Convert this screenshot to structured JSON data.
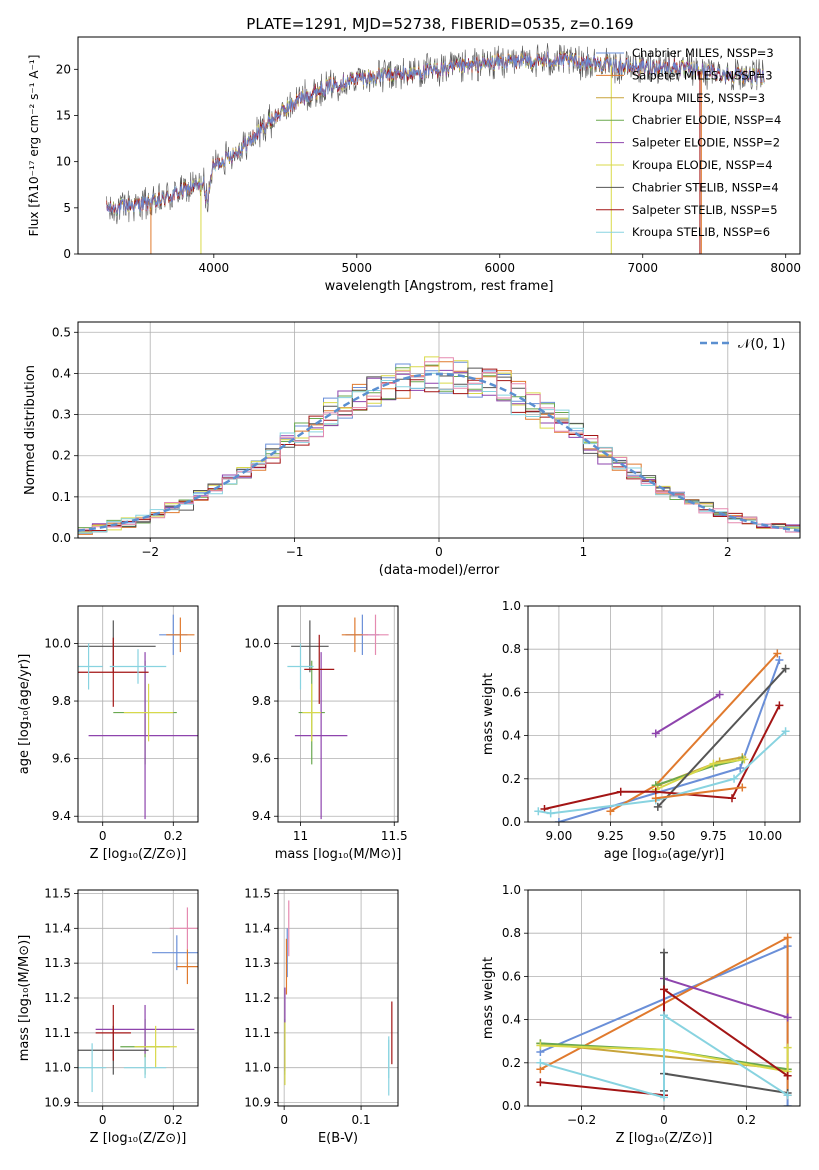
{
  "figure_title": "PLATE=1291, MJD=52738, FIBERID=0535, z=0.169",
  "colors": [
    "#6a8fd8",
    "#e07a2e",
    "#c8a43a",
    "#6aa84f",
    "#8e44ad",
    "#d9d94a",
    "#555555",
    "#a31515",
    "#88d3e0"
  ],
  "chart_data": [
    {
      "id": "spectrum",
      "type": "line",
      "xlabel": "wavelength [Angstrom, rest frame]",
      "ylabel": "Flux [fλ10⁻¹⁷ erg cm⁻² s⁻¹ A⁻¹]",
      "xlim": [
        3050,
        8100
      ],
      "ylim": [
        0,
        23.5
      ],
      "xticks": [
        4000,
        5000,
        6000,
        7000,
        8000
      ],
      "yticks": [
        0,
        5,
        10,
        15,
        20
      ],
      "grid": false,
      "legend_position": "upper-right",
      "legend": [
        "Chabrier MILES, NSSP=3",
        "Salpeter MILES, NSSP=3",
        "Kroupa MILES, NSSP=3",
        "Chabrier ELODIE, NSSP=4",
        "Salpeter ELODIE, NSSP=2",
        "Kroupa ELODIE, NSSP=4",
        "Chabrier STELIB, NSSP=4",
        "Salpeter STELIB, NSSP=5",
        "Kroupa STELIB, NSSP=6"
      ],
      "continuum": [
        [
          3250,
          4.9
        ],
        [
          3400,
          5.2
        ],
        [
          3600,
          5.6
        ],
        [
          3800,
          7.0
        ],
        [
          3950,
          7.6
        ],
        [
          4000,
          9.5
        ],
        [
          4200,
          11.5
        ],
        [
          4400,
          14.5
        ],
        [
          4600,
          16.8
        ],
        [
          4800,
          18.2
        ],
        [
          5000,
          19.0
        ],
        [
          5200,
          19.3
        ],
        [
          5400,
          19.6
        ],
        [
          5600,
          20.0
        ],
        [
          5800,
          20.4
        ],
        [
          6000,
          20.8
        ],
        [
          6200,
          20.9
        ],
        [
          6400,
          21.0
        ],
        [
          6600,
          20.8
        ],
        [
          6800,
          20.4
        ],
        [
          7000,
          20.2
        ],
        [
          7200,
          20.3
        ],
        [
          7400,
          19.8
        ],
        [
          7600,
          19.5
        ],
        [
          7800,
          19.2
        ],
        [
          7850,
          19.0
        ]
      ]
    },
    {
      "id": "residuals",
      "type": "histogram",
      "xlabel": "(data-model)/error",
      "ylabel": "Normed distribution",
      "xlim": [
        -2.5,
        2.5
      ],
      "ylim": [
        0,
        0.525
      ],
      "xticks": [
        -2,
        -1,
        0,
        1,
        2
      ],
      "yticks": [
        0.0,
        0.1,
        0.2,
        0.3,
        0.4,
        0.5
      ],
      "grid": true,
      "legend_position": "upper-right",
      "legend": [
        "𝒩(0, 1)"
      ],
      "bin_width": 0.1,
      "normal": {
        "mean": 0,
        "sigma": 1
      }
    },
    {
      "id": "age-vs-Z",
      "type": "errorbar",
      "xlabel": "Z [log₁₀(Z/Z⊙)]",
      "ylabel": "age  [log₁₀(age/yr)]",
      "xlim": [
        -0.07,
        0.27
      ],
      "ylim": [
        9.38,
        10.13
      ],
      "xticks": [
        0.0,
        0.2
      ],
      "yticks": [
        9.4,
        9.6,
        9.8,
        10.0
      ],
      "grid": true,
      "points": [
        {
          "x": 0.2,
          "y": 10.03,
          "xerr": 0.04,
          "yerr": 0.07,
          "c": 0
        },
        {
          "x": 0.22,
          "y": 10.03,
          "xerr": 0.04,
          "yerr": 0.06,
          "c": 1
        },
        {
          "x": 0.12,
          "y": 9.76,
          "xerr": 0.09,
          "yerr": 0.18,
          "c": 3
        },
        {
          "x": 0.12,
          "y": 9.68,
          "xerr": 0.16,
          "yerr": 0.29,
          "c": 4
        },
        {
          "x": 0.13,
          "y": 9.76,
          "xerr": 0.07,
          "yerr": 0.1,
          "c": 5
        },
        {
          "x": 0.03,
          "y": 9.99,
          "xerr": 0.12,
          "yerr": 0.09,
          "c": 6
        },
        {
          "x": 0.03,
          "y": 9.9,
          "xerr": 0.1,
          "yerr": 0.12,
          "c": 7
        },
        {
          "x": -0.04,
          "y": 9.92,
          "xerr": 0.04,
          "yerr": 0.08,
          "c": 8
        },
        {
          "x": 0.1,
          "y": 9.92,
          "xerr": 0.08,
          "yerr": 0.06,
          "c": 8
        }
      ]
    },
    {
      "id": "age-vs-mass",
      "type": "errorbar",
      "xlabel": "mass [log₁₀(M/M⊙)]",
      "ylabel": "",
      "xlim": [
        10.88,
        11.52
      ],
      "ylim": [
        9.38,
        10.13
      ],
      "xticks": [
        11.0,
        11.5
      ],
      "yticks": [
        9.4,
        9.6,
        9.8,
        10.0
      ],
      "grid": true,
      "points": [
        {
          "x": 11.33,
          "y": 10.03,
          "xerr": 0.09,
          "yerr": 0.07,
          "c": 0
        },
        {
          "x": 11.29,
          "y": 10.03,
          "xerr": 0.07,
          "yerr": 0.06,
          "c": 1
        },
        {
          "x": 11.4,
          "y": 10.03,
          "xerr": 0.07,
          "yerr": 0.07,
          "c": 9
        },
        {
          "x": 11.06,
          "y": 9.76,
          "xerr": 0.07,
          "yerr": 0.18,
          "c": 3
        },
        {
          "x": 11.11,
          "y": 9.68,
          "xerr": 0.14,
          "yerr": 0.29,
          "c": 4
        },
        {
          "x": 11.06,
          "y": 9.76,
          "xerr": 0.05,
          "yerr": 0.1,
          "c": 5
        },
        {
          "x": 11.05,
          "y": 9.99,
          "xerr": 0.1,
          "yerr": 0.09,
          "c": 6
        },
        {
          "x": 11.1,
          "y": 9.91,
          "xerr": 0.08,
          "yerr": 0.12,
          "c": 7
        },
        {
          "x": 11.0,
          "y": 9.92,
          "xerr": 0.07,
          "yerr": 0.08,
          "c": 8
        }
      ]
    },
    {
      "id": "mass-weight-vs-age",
      "type": "line",
      "xlabel": "age  [log₁₀(age/yr)]",
      "ylabel": "mass weight",
      "xlim": [
        8.85,
        10.17
      ],
      "ylim": [
        0,
        1.0
      ],
      "xticks": [
        9.0,
        9.25,
        9.5,
        9.75,
        10.0
      ],
      "xticklabels": [
        "9.00",
        "9.25",
        "9.50",
        "9.75",
        "10.00"
      ],
      "yticks": [
        0.0,
        0.2,
        0.4,
        0.6,
        0.8,
        1.0
      ],
      "grid": true,
      "series": [
        {
          "c": 0,
          "pts": [
            [
              9.0,
              0.0
            ],
            [
              9.88,
              0.25
            ],
            [
              10.07,
              0.75
            ]
          ]
        },
        {
          "c": 1,
          "pts": [
            [
              9.25,
              0.05
            ],
            [
              9.47,
              0.17
            ],
            [
              10.06,
              0.78
            ]
          ]
        },
        {
          "c": 2,
          "pts": [
            [
              9.48,
              0.17
            ],
            [
              9.78,
              0.28
            ],
            [
              9.89,
              0.3
            ]
          ]
        },
        {
          "c": 3,
          "pts": [
            [
              9.47,
              0.17
            ],
            [
              9.75,
              0.26
            ],
            [
              9.89,
              0.29
            ]
          ]
        },
        {
          "c": 4,
          "pts": [
            [
              9.47,
              0.41
            ],
            [
              9.78,
              0.59
            ]
          ]
        },
        {
          "c": 5,
          "pts": [
            [
              9.47,
              0.15
            ],
            [
              9.75,
              0.27
            ],
            [
              9.9,
              0.29
            ]
          ]
        },
        {
          "c": 6,
          "pts": [
            [
              9.48,
              0.07
            ],
            [
              10.1,
              0.71
            ]
          ]
        },
        {
          "c": 7,
          "pts": [
            [
              8.93,
              0.06
            ],
            [
              9.3,
              0.14
            ],
            [
              9.47,
              0.14
            ],
            [
              9.84,
              0.11
            ],
            [
              10.07,
              0.54
            ]
          ]
        },
        {
          "c": 8,
          "pts": [
            [
              8.9,
              0.05
            ],
            [
              8.96,
              0.04
            ],
            [
              9.47,
              0.1
            ],
            [
              9.85,
              0.2
            ],
            [
              10.1,
              0.42
            ]
          ]
        },
        {
          "c": 1,
          "pts": [
            [
              9.47,
              0.11
            ],
            [
              9.89,
              0.16
            ]
          ]
        }
      ]
    },
    {
      "id": "mass-vs-Z",
      "type": "errorbar",
      "xlabel": "Z [log₁₀(Z/Z⊙)]",
      "ylabel": "mass [log₁₀(M/M⊙)]",
      "xlim": [
        -0.07,
        0.27
      ],
      "ylim": [
        10.89,
        11.51
      ],
      "xticks": [
        0.0,
        0.2
      ],
      "yticks": [
        10.9,
        11.0,
        11.1,
        11.2,
        11.3,
        11.4,
        11.5
      ],
      "grid": true,
      "points": [
        {
          "x": 0.21,
          "y": 11.33,
          "xerr": 0.07,
          "yerr": 0.05,
          "c": 0
        },
        {
          "x": 0.24,
          "y": 11.29,
          "xerr": 0.03,
          "yerr": 0.05,
          "c": 1
        },
        {
          "x": 0.24,
          "y": 11.4,
          "xerr": 0.05,
          "yerr": 0.06,
          "c": 9
        },
        {
          "x": 0.12,
          "y": 11.06,
          "xerr": 0.07,
          "yerr": 0.08,
          "c": 3
        },
        {
          "x": 0.12,
          "y": 11.11,
          "xerr": 0.14,
          "yerr": 0.07,
          "c": 4
        },
        {
          "x": 0.15,
          "y": 11.06,
          "xerr": 0.06,
          "yerr": 0.06,
          "c": 5
        },
        {
          "x": 0.03,
          "y": 11.05,
          "xerr": 0.1,
          "yerr": 0.07,
          "c": 6
        },
        {
          "x": 0.03,
          "y": 11.1,
          "xerr": 0.05,
          "yerr": 0.08,
          "c": 7
        },
        {
          "x": -0.03,
          "y": 11.0,
          "xerr": 0.04,
          "yerr": 0.07,
          "c": 8
        },
        {
          "x": 0.12,
          "y": 11.0,
          "xerr": 0.06,
          "yerr": 0.03,
          "c": 8
        }
      ]
    },
    {
      "id": "mass-vs-EBV",
      "type": "errorbar",
      "xlabel": "E(B-V)",
      "ylabel": "",
      "xlim": [
        -0.008,
        0.148
      ],
      "ylim": [
        10.89,
        11.51
      ],
      "xticks": [
        0.0,
        0.1
      ],
      "yticks": [
        10.9,
        11.0,
        11.1,
        11.2,
        11.3,
        11.4,
        11.5
      ],
      "grid": true,
      "points": [
        {
          "x": 0.004,
          "y": 11.33,
          "xerr": 0,
          "yerr": 0.07,
          "c": 0
        },
        {
          "x": 0.003,
          "y": 11.29,
          "xerr": 0,
          "yerr": 0.08,
          "c": 1
        },
        {
          "x": 0.006,
          "y": 11.4,
          "xerr": 0,
          "yerr": 0.08,
          "c": 9
        },
        {
          "x": 0.001,
          "y": 11.06,
          "xerr": 0,
          "yerr": 0.08,
          "c": 3
        },
        {
          "x": 0.001,
          "y": 11.11,
          "xerr": 0,
          "yerr": 0.12,
          "c": 4
        },
        {
          "x": 0.001,
          "y": 11.04,
          "xerr": 0,
          "yerr": 0.09,
          "c": 5
        },
        {
          "x": 0.14,
          "y": 11.1,
          "xerr": 0,
          "yerr": 0.09,
          "c": 7
        },
        {
          "x": 0.136,
          "y": 11.0,
          "xerr": 0,
          "yerr": 0.08,
          "c": 8
        },
        {
          "x": 0.136,
          "y": 11.03,
          "xerr": 0,
          "yerr": 0.06,
          "c": 8
        }
      ]
    },
    {
      "id": "mass-weight-vs-Z",
      "type": "line",
      "xlabel": "Z [log₁₀(Z/Z⊙)]",
      "ylabel": "mass weight",
      "xlim": [
        -0.33,
        0.33
      ],
      "ylim": [
        0,
        1.0
      ],
      "xticks": [
        -0.2,
        0.0,
        0.2
      ],
      "yticks": [
        0.0,
        0.2,
        0.4,
        0.6,
        0.8,
        1.0
      ],
      "grid": true,
      "series": [
        {
          "c": 0,
          "pts": [
            [
              -0.3,
              0.25
            ],
            [
              0.3,
              0.74
            ],
            [
              0.3,
              0.0
            ]
          ]
        },
        {
          "c": 1,
          "pts": [
            [
              -0.3,
              0.17
            ],
            [
              0.3,
              0.78
            ],
            [
              0.3,
              0.05
            ]
          ]
        },
        {
          "c": 2,
          "pts": [
            [
              -0.3,
              0.29
            ],
            [
              0.3,
              0.17
            ]
          ]
        },
        {
          "c": 3,
          "pts": [
            [
              -0.3,
              0.29
            ],
            [
              0.0,
              0.26
            ],
            [
              0.3,
              0.17
            ]
          ]
        },
        {
          "c": 4,
          "pts": [
            [
              0.0,
              0.59
            ],
            [
              0.3,
              0.41
            ]
          ]
        },
        {
          "c": 5,
          "pts": [
            [
              -0.3,
              0.28
            ],
            [
              0.0,
              0.26
            ],
            [
              0.3,
              0.16
            ],
            [
              0.3,
              0.27
            ]
          ]
        },
        {
          "c": 6,
          "pts": [
            [
              0.0,
              0.71
            ],
            [
              0.0,
              0.07
            ],
            [
              0.0,
              0.15
            ],
            [
              0.3,
              0.06
            ]
          ]
        },
        {
          "c": 7,
          "pts": [
            [
              -0.3,
              0.11
            ],
            [
              0.0,
              0.05
            ],
            [
              0.0,
              0.54
            ],
            [
              0.3,
              0.14
            ]
          ]
        },
        {
          "c": 8,
          "pts": [
            [
              -0.3,
              0.2
            ],
            [
              0.0,
              0.04
            ],
            [
              0.0,
              0.42
            ],
            [
              0.3,
              0.05
            ]
          ]
        }
      ]
    }
  ]
}
